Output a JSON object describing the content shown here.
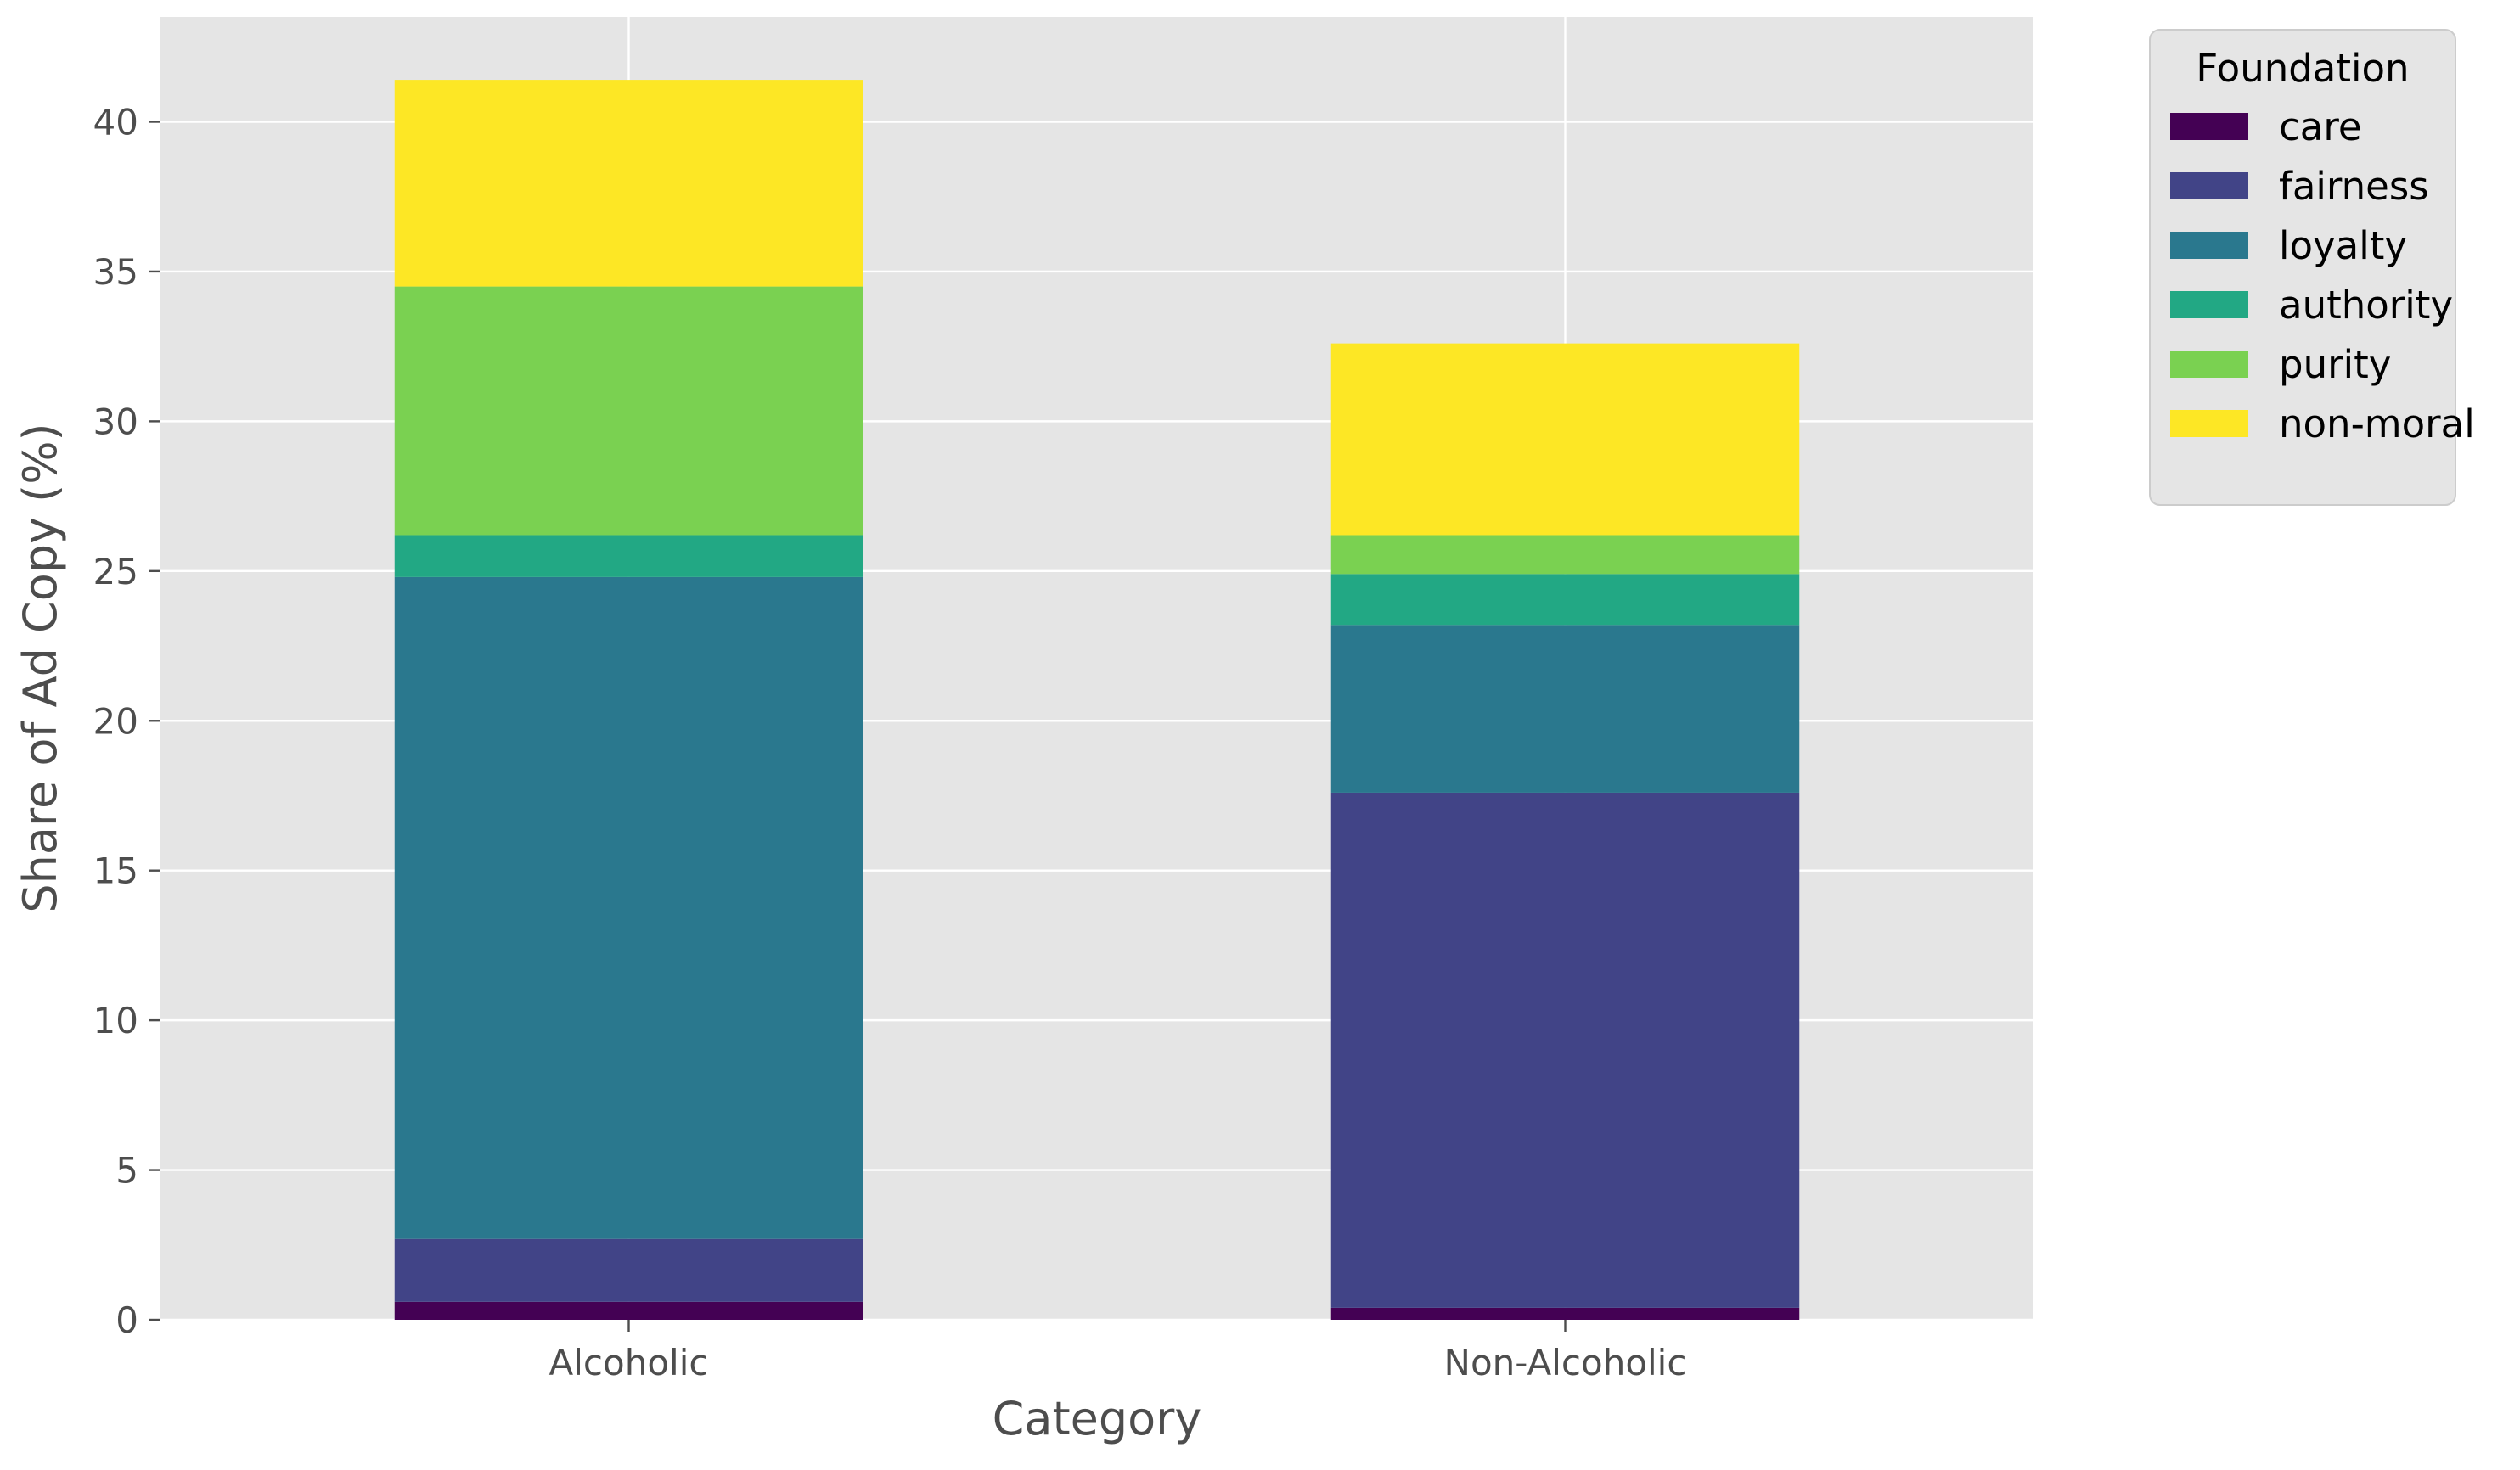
{
  "chart_data": {
    "type": "bar",
    "stacked": true,
    "categories": [
      "Alcoholic",
      "Non-Alcoholic"
    ],
    "series": [
      {
        "name": "care",
        "color": "#440154",
        "values": [
          0.6,
          0.4
        ]
      },
      {
        "name": "fairness",
        "color": "#414487",
        "values": [
          2.1,
          17.2
        ]
      },
      {
        "name": "loyalty",
        "color": "#2a788e",
        "values": [
          22.1,
          5.6
        ]
      },
      {
        "name": "authority",
        "color": "#22a884",
        "values": [
          1.4,
          1.7
        ]
      },
      {
        "name": "purity",
        "color": "#7ad151",
        "values": [
          8.3,
          1.3
        ]
      },
      {
        "name": "non-moral",
        "color": "#fde725",
        "values": [
          6.9,
          6.4
        ]
      }
    ],
    "xlabel": "Category",
    "ylabel": "Share of Ad Copy (%)",
    "ylim": [
      0,
      43.5
    ],
    "yticks": [
      0,
      5,
      10,
      15,
      20,
      25,
      30,
      35,
      40
    ],
    "legend_title": "Foundation",
    "legend_position": "outside-top-right",
    "grid": true,
    "background_color": "#e5e5e5",
    "grid_color": "#ffffff"
  }
}
